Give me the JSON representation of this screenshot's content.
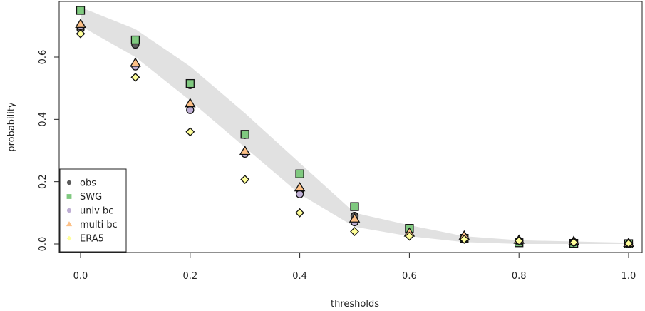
{
  "chart_data": {
    "type": "scatter",
    "title": "",
    "xlabel": "thresholds",
    "ylabel": "probability",
    "xlim": [
      -0.03,
      1.03
    ],
    "ylim": [
      -0.025,
      0.78
    ],
    "x_ticks": [
      "0.0",
      "0.2",
      "0.4",
      "0.6",
      "0.8",
      "1.0"
    ],
    "y_ticks": [
      "0.0",
      "0.2",
      "0.4",
      "0.6"
    ],
    "grid": false,
    "legend_position": "bottom-left",
    "band": {
      "x": [
        0.0,
        0.1,
        0.2,
        0.3,
        0.4,
        0.5,
        0.6,
        0.7,
        0.8,
        0.9,
        1.0
      ],
      "lower": [
        0.7,
        0.6,
        0.46,
        0.31,
        0.16,
        0.055,
        0.025,
        0.006,
        0.0,
        0.0,
        0.0
      ],
      "upper": [
        0.76,
        0.69,
        0.57,
        0.42,
        0.26,
        0.1,
        0.06,
        0.025,
        0.012,
        0.008,
        0.004
      ],
      "color": "#e1e1e1"
    },
    "x": [
      0.0,
      0.1,
      0.2,
      0.3,
      0.4,
      0.5,
      0.6,
      0.7,
      0.8,
      0.9,
      1.0
    ],
    "series": [
      {
        "name": "obs",
        "marker": "circle",
        "color": "#5a5a5a",
        "values": [
          0.69,
          0.64,
          0.51,
          0.35,
          0.17,
          0.09,
          0.035,
          0.015,
          0.01,
          0.005,
          0.0
        ]
      },
      {
        "name": "SWG",
        "marker": "square",
        "color": "#7fc97f",
        "values": [
          0.75,
          0.655,
          0.515,
          0.352,
          0.225,
          0.12,
          0.05,
          0.018,
          0.004,
          0.002,
          0.001
        ]
      },
      {
        "name": "univ bc",
        "marker": "circle",
        "color": "#beaed4",
        "values": [
          0.7,
          0.57,
          0.43,
          0.29,
          0.16,
          0.07,
          0.03,
          0.015,
          0.008,
          0.005,
          0.0
        ]
      },
      {
        "name": "multi bc",
        "marker": "triangle",
        "color": "#fdc086",
        "values": [
          0.705,
          0.58,
          0.45,
          0.297,
          0.18,
          0.08,
          0.035,
          0.025,
          0.012,
          0.008,
          0.002
        ]
      },
      {
        "name": "ERA5",
        "marker": "diamond",
        "color": "#ffff99",
        "values": [
          0.675,
          0.535,
          0.36,
          0.207,
          0.1,
          0.04,
          0.025,
          0.015,
          0.01,
          0.005,
          0.002
        ]
      }
    ]
  }
}
